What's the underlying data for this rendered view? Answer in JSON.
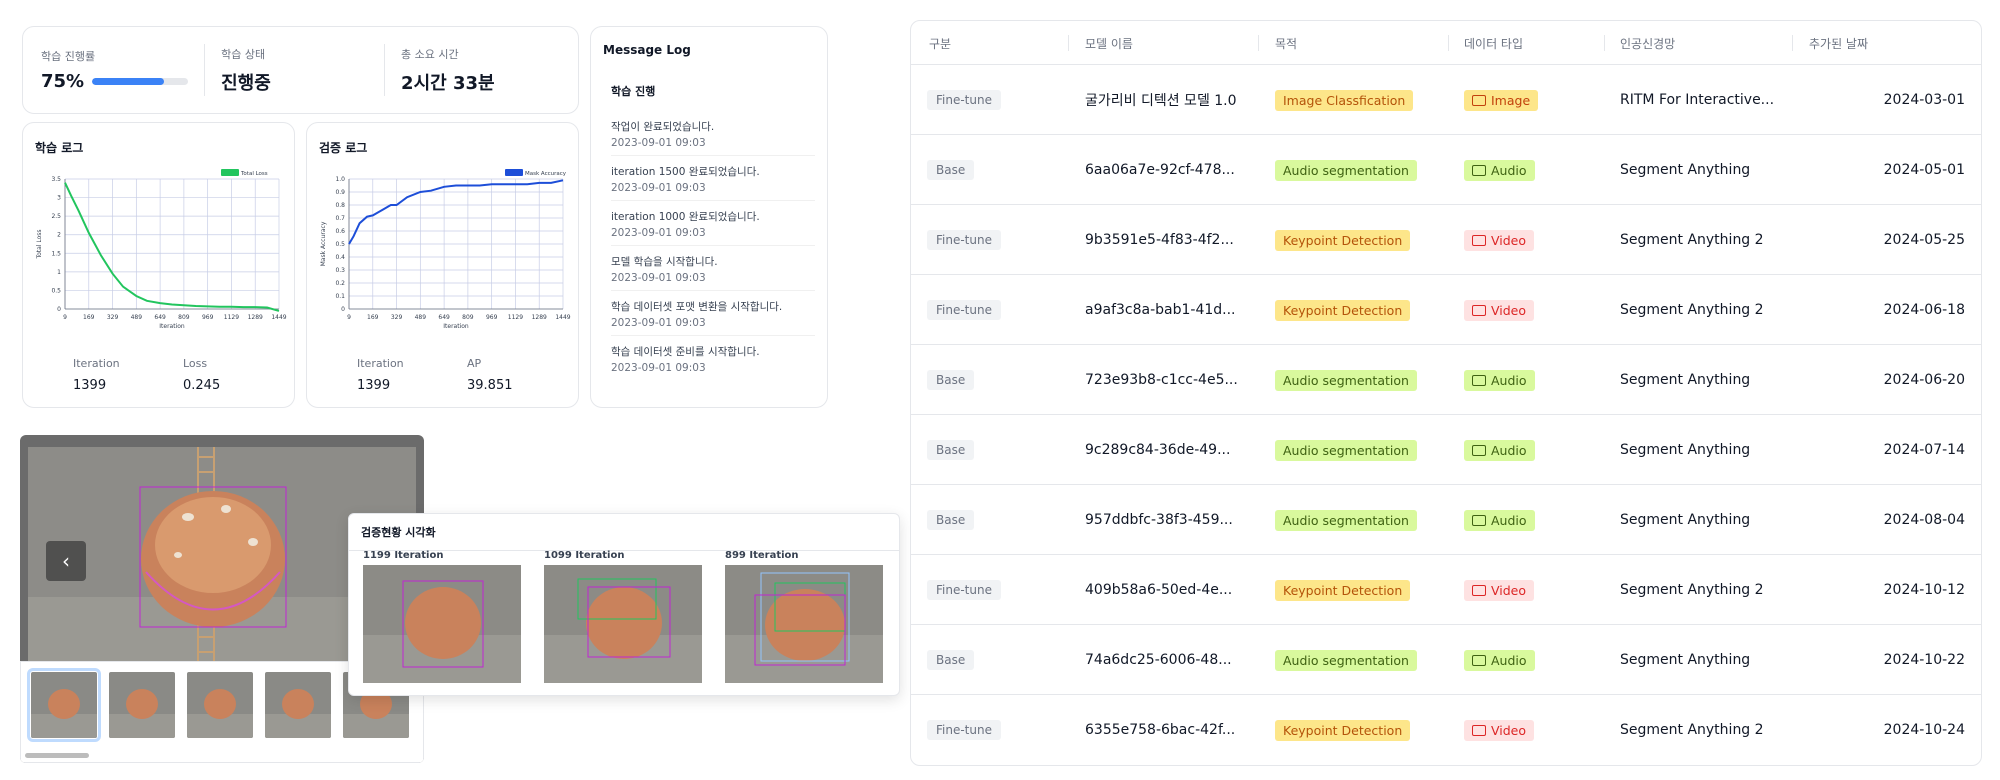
{
  "stats": {
    "progress": {
      "label": "학습 진행률",
      "value": "75%",
      "fraction": 0.75
    },
    "status": {
      "label": "학습 상태",
      "value": "진행중"
    },
    "elapsed": {
      "label": "총 소요 시간",
      "value": "2시간 33분"
    }
  },
  "train_card": {
    "title": "학습 로그",
    "metric1_label": "Iteration",
    "metric1_value": "1399",
    "metric2_label": "Loss",
    "metric2_value": "0.245"
  },
  "val_card": {
    "title": "검증 로그",
    "metric1_label": "Iteration",
    "metric1_value": "1399",
    "metric2_label": "AP",
    "metric2_value": "39.851"
  },
  "chart_data": [
    {
      "type": "line",
      "xlabel": "Iteration",
      "ylabel": "Total Loss",
      "legend": "top-right",
      "grid": true,
      "x_ticks": [
        "9",
        "169",
        "329",
        "489",
        "649",
        "809",
        "969",
        "1129",
        "1289",
        "1449"
      ],
      "y_ticks": [
        "0",
        "0.5",
        "1",
        "1.5",
        "2",
        "2.5",
        "3",
        "3.5"
      ],
      "ylim": [
        0,
        3.5
      ],
      "xlim": [
        9,
        1449
      ],
      "series": [
        {
          "name": "Total Loss",
          "color": "#22c55e",
          "x": [
            9,
            50,
            100,
            169,
            250,
            329,
            400,
            489,
            560,
            649,
            729,
            809,
            889,
            969,
            1049,
            1129,
            1209,
            1289,
            1369,
            1449
          ],
          "y": [
            3.4,
            3.05,
            2.65,
            2.05,
            1.45,
            0.95,
            0.6,
            0.35,
            0.22,
            0.16,
            0.12,
            0.1,
            0.08,
            0.07,
            0.06,
            0.06,
            0.05,
            0.05,
            0.04,
            -0.05
          ]
        }
      ]
    },
    {
      "type": "line",
      "xlabel": "Iteration",
      "ylabel": "Mask Accuracy",
      "legend": "top-right",
      "grid": true,
      "x_ticks": [
        "9",
        "169",
        "329",
        "489",
        "649",
        "809",
        "969",
        "1129",
        "1289",
        "1449"
      ],
      "y_ticks": [
        "0",
        "0.1",
        "0.2",
        "0.3",
        "0.4",
        "0.5",
        "0.6",
        "0.7",
        "0.8",
        "0.9",
        "1.0"
      ],
      "ylim": [
        0,
        1.0
      ],
      "xlim": [
        9,
        1449
      ],
      "series": [
        {
          "name": "Mask Accuracy",
          "color": "#1d4ed8",
          "x": [
            9,
            40,
            80,
            130,
            169,
            230,
            290,
            329,
            400,
            489,
            560,
            649,
            729,
            809,
            889,
            969,
            1049,
            1129,
            1209,
            1289,
            1369,
            1449
          ],
          "y": [
            0.5,
            0.56,
            0.66,
            0.71,
            0.72,
            0.76,
            0.8,
            0.8,
            0.86,
            0.9,
            0.91,
            0.94,
            0.95,
            0.95,
            0.95,
            0.96,
            0.96,
            0.96,
            0.96,
            0.97,
            0.97,
            0.99
          ]
        }
      ]
    }
  ],
  "message_log": {
    "title": "Message Log",
    "section": "학습 진행",
    "items": [
      {
        "text": "작업이 완료되었습니다.",
        "time": "2023-09-01 09:03"
      },
      {
        "text": "iteration 1500 완료되었습니다.",
        "time": "2023-09-01 09:03"
      },
      {
        "text": "iteration 1000 완료되었습니다.",
        "time": "2023-09-01 09:03"
      },
      {
        "text": "모델 학습을 시작합니다.",
        "time": "2023-09-01 09:03"
      },
      {
        "text": "학습 데이터셋 포맷 변환을 시작합니다.",
        "time": "2023-09-01 09:03"
      },
      {
        "text": "학습 데이터셋 준비를 시작합니다.",
        "time": "2023-09-01 09:03"
      }
    ]
  },
  "viewer": {
    "prev_icon": "chevron-left-icon"
  },
  "val_viz": {
    "title": "검증현황 시각화",
    "items": [
      {
        "label": "1199 Iteration"
      },
      {
        "label": "1099 Iteration"
      },
      {
        "label": "899 Iteration"
      }
    ]
  },
  "table": {
    "headers": [
      "구분",
      "모델 이름",
      "목적",
      "데이터 타입",
      "인공신경망",
      "추가된 날짜"
    ],
    "colors": {
      "purpose_yellow_bg": "#fde68a",
      "purpose_yellow_fg": "#b45309",
      "purpose_green_bg": "#d9f99d",
      "purpose_green_fg": "#3f6212",
      "type_image_bg": "#fde68a",
      "type_image_fg": "#c2410c",
      "type_audio_bg": "#d9f99d",
      "type_audio_fg": "#3f6212",
      "type_video_bg": "#fee2e2",
      "type_video_fg": "#dc2626"
    },
    "rows": [
      {
        "kind": "Fine-tune",
        "name": "굴가리비 디텍션 모델 1.0",
        "purpose": "Image Classfication",
        "purpose_tone": "yellow",
        "dtype": "Image",
        "dtype_icon": "image-icon",
        "network": "RITM For Interactive...",
        "date": "2024-03-01"
      },
      {
        "kind": "Base",
        "name": "6aa06a7e-92cf-478...",
        "purpose": "Audio segmentation",
        "purpose_tone": "green",
        "dtype": "Audio",
        "dtype_icon": "audio-icon",
        "network": "Segment Anything",
        "date": "2024-05-01"
      },
      {
        "kind": "Fine-tune",
        "name": "9b3591e5-4f83-4f2...",
        "purpose": "Keypoint Detection",
        "purpose_tone": "yellow",
        "dtype": "Video",
        "dtype_icon": "video-icon",
        "network": "Segment Anything 2",
        "date": "2024-05-25"
      },
      {
        "kind": "Fine-tune",
        "name": "a9af3c8a-bab1-41d...",
        "purpose": "Keypoint Detection",
        "purpose_tone": "yellow",
        "dtype": "Video",
        "dtype_icon": "video-icon",
        "network": "Segment Anything 2",
        "date": "2024-06-18"
      },
      {
        "kind": "Base",
        "name": "723e93b8-c1cc-4e5...",
        "purpose": "Audio segmentation",
        "purpose_tone": "green",
        "dtype": "Audio",
        "dtype_icon": "audio-icon",
        "network": "Segment Anything",
        "date": "2024-06-20"
      },
      {
        "kind": "Base",
        "name": "9c289c84-36de-49...",
        "purpose": "Audio segmentation",
        "purpose_tone": "green",
        "dtype": "Audio",
        "dtype_icon": "audio-icon",
        "network": "Segment Anything",
        "date": "2024-07-14"
      },
      {
        "kind": "Base",
        "name": "957ddbfc-38f3-459...",
        "purpose": "Audio segmentation",
        "purpose_tone": "green",
        "dtype": "Audio",
        "dtype_icon": "audio-icon",
        "network": "Segment Anything",
        "date": "2024-08-04"
      },
      {
        "kind": "Fine-tune",
        "name": "409b58a6-50ed-4e...",
        "purpose": "Keypoint Detection",
        "purpose_tone": "yellow",
        "dtype": "Video",
        "dtype_icon": "video-icon",
        "network": "Segment Anything 2",
        "date": "2024-10-12"
      },
      {
        "kind": "Base",
        "name": "74a6dc25-6006-48...",
        "purpose": "Audio segmentation",
        "purpose_tone": "green",
        "dtype": "Audio",
        "dtype_icon": "audio-icon",
        "network": "Segment Anything",
        "date": "2024-10-22"
      },
      {
        "kind": "Fine-tune",
        "name": "6355e758-6bac-42f...",
        "purpose": "Keypoint Detection",
        "purpose_tone": "yellow",
        "dtype": "Video",
        "dtype_icon": "video-icon",
        "network": "Segment Anything 2",
        "date": "2024-10-24"
      }
    ]
  }
}
